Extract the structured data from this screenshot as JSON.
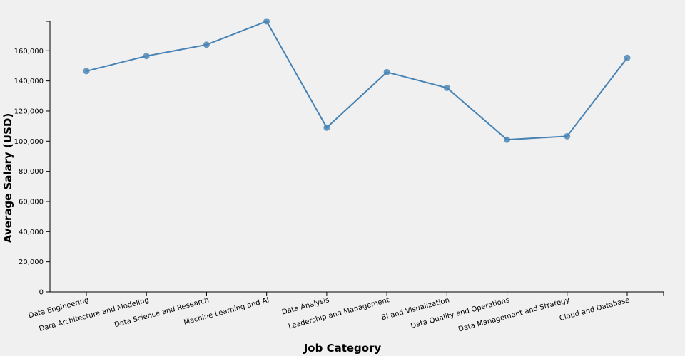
{
  "chart_data": {
    "type": "line",
    "x_label": "Job Category",
    "y_label": "Average Salary (USD)",
    "categories": [
      "Data Engineering",
      "Data Architecture and Modeling",
      "Data Science and Research",
      "Machine Learning and AI",
      "Data Analysis",
      "Leadership and Management",
      "BI and Visualization",
      "Data Quality and Operations",
      "Data Management and Strategy",
      "Cloud and Database"
    ],
    "values": [
      146500,
      156500,
      164000,
      179500,
      109000,
      145800,
      135400,
      101000,
      103300,
      155300
    ],
    "color": "#4682b4",
    "ylim": [
      0,
      179500
    ],
    "yticks": [
      0,
      {
        "value": 20000,
        "label": "20,000"
      },
      {
        "value": 40000,
        "label": "40,000"
      },
      {
        "value": 60000,
        "label": "60,000"
      },
      {
        "value": 80000,
        "label": "80,000"
      },
      {
        "value": 100000,
        "label": "100,000"
      },
      {
        "value": 120000,
        "label": "120,000"
      },
      {
        "value": 140000,
        "label": "140,000"
      },
      {
        "value": 160000,
        "label": "160,000"
      }
    ],
    "grid": false
  }
}
